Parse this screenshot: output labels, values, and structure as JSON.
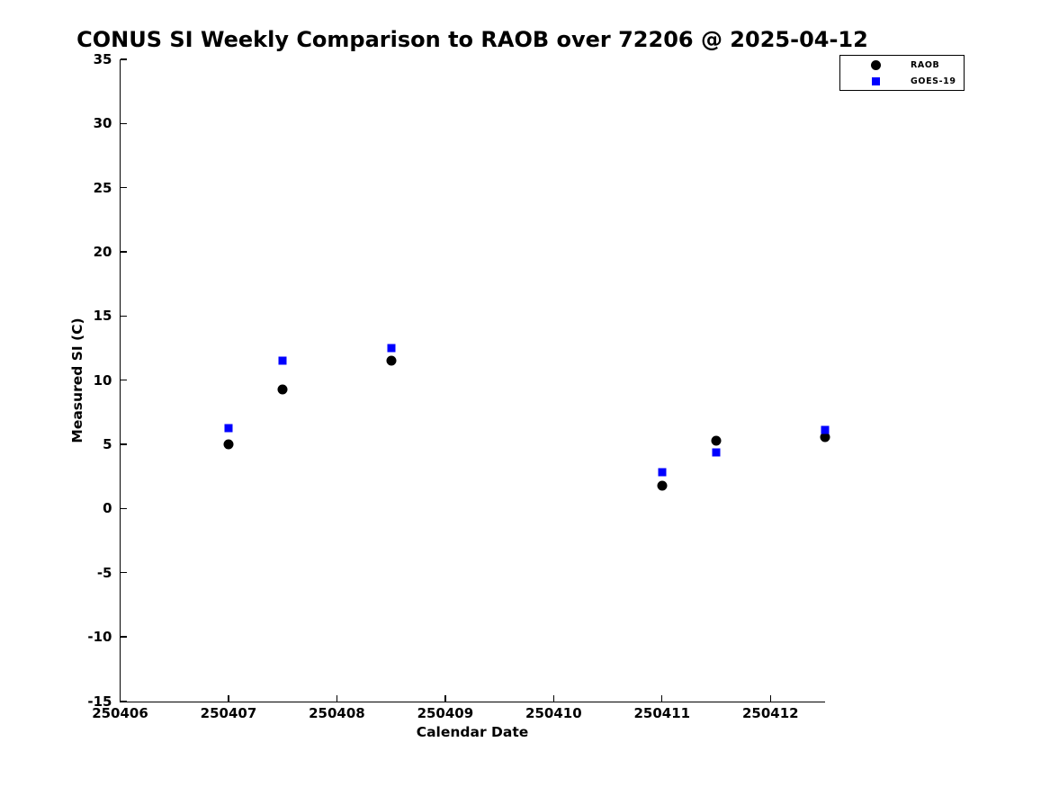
{
  "chart_data": {
    "type": "scatter",
    "title": "CONUS SI Weekly Comparison to RAOB over 72206 @ 2025-04-12",
    "xlabel": "Calendar Date",
    "ylabel": "Measured SI (C)",
    "xlim": [
      250406,
      250412.5
    ],
    "ylim": [
      -15,
      35
    ],
    "x_ticks": [
      250406,
      250407,
      250408,
      250409,
      250410,
      250411,
      250412
    ],
    "y_ticks": [
      -15,
      -10,
      -5,
      0,
      5,
      10,
      15,
      20,
      25,
      30,
      35
    ],
    "grid": false,
    "legend_position": "top-right",
    "colors": {
      "raob": "#000000",
      "goes19": "#0000ff"
    },
    "series": [
      {
        "name": "RAOB",
        "marker": "circle",
        "color": "#000000",
        "points": [
          [
            250407,
            5.0
          ],
          [
            250407.5,
            9.3
          ],
          [
            250408.5,
            11.5
          ],
          [
            250411,
            1.8
          ],
          [
            250411.5,
            5.3
          ],
          [
            250412.5,
            5.6
          ]
        ]
      },
      {
        "name": "GOES-19",
        "marker": "square",
        "color": "#0000ff",
        "points": [
          [
            250407,
            6.3
          ],
          [
            250407.5,
            11.5
          ],
          [
            250408.5,
            12.5
          ],
          [
            250411,
            2.8
          ],
          [
            250411.5,
            4.4
          ],
          [
            250412.5,
            6.1
          ]
        ]
      }
    ]
  }
}
